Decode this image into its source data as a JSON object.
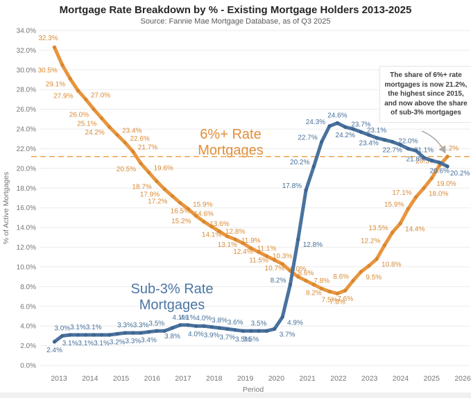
{
  "header": {
    "title": "Mortgage Rate Breakdown by % - Existing Mortgage Holders 2013-2025",
    "subtitle": "Source: Fannie Mae Mortgage Database, as of Q3 2025"
  },
  "chart_data": {
    "type": "line",
    "title": "Mortgage Rate Breakdown by % - Existing Mortgage Holders 2013-2025",
    "subtitle": "Source: Fannie Mae Mortgage Database, as of Q3 2025",
    "xlabel": "Period",
    "ylabel": "% of Active Mortgages",
    "ylim": [
      0,
      34
    ],
    "y_ticks": [
      0,
      2,
      4,
      6,
      8,
      10,
      12,
      14,
      16,
      18,
      20,
      22,
      24,
      26,
      28,
      30,
      32,
      34
    ],
    "y_tick_labels": [
      "0.0%",
      "2.0%",
      "4.0%",
      "6.0%",
      "8.0%",
      "10.0%",
      "12.0%",
      "14.0%",
      "16.0%",
      "18.0%",
      "20.0%",
      "22.0%",
      "24.0%",
      "26.0%",
      "28.0%",
      "30.0%",
      "32.0%",
      "34.0%"
    ],
    "x_ticks": [
      2013,
      2014,
      2015,
      2016,
      2017,
      2018,
      2019,
      2020,
      2021,
      2022,
      2023,
      2024,
      2025,
      2026
    ],
    "x_tick_labels": [
      "2013",
      "2014",
      "2015",
      "2016",
      "2017",
      "2018",
      "2019",
      "2020",
      "2021",
      "2022",
      "2023",
      "2024",
      "2025",
      "2026"
    ],
    "x_range_years": [
      2013.0,
      2025.5
    ],
    "grid": "horizontal",
    "reference_line": {
      "value": 21.2,
      "style": "dashed",
      "color": "#EBA24F"
    },
    "series": [
      {
        "name": "6%+ Rate Mortgages",
        "color": "#E8953E",
        "dot_color": "#D8862D",
        "label_color": "#D98A35",
        "inline_label": [
          "6%+ Rate",
          "Mortgages"
        ],
        "values": [
          32.3,
          30.5,
          29.1,
          27.9,
          27.0,
          26.0,
          25.1,
          24.2,
          23.4,
          22.6,
          21.7,
          20.5,
          19.6,
          18.7,
          17.9,
          17.2,
          16.5,
          15.9,
          15.2,
          14.6,
          14.1,
          13.6,
          13.1,
          12.8,
          12.4,
          11.9,
          11.5,
          11.1,
          10.7,
          10.3,
          9.6,
          9.0,
          8.6,
          8.2,
          7.8,
          7.5,
          7.3,
          7.6,
          8.6,
          9.5,
          10.1,
          10.8,
          12.2,
          13.5,
          14.4,
          15.9,
          17.1,
          18.0,
          19.0,
          20.3,
          21.2
        ],
        "labels": [
          "32.3%",
          "30.5%",
          "29.1%",
          "27.9%",
          "27.0%",
          "26.0%",
          "25.1%",
          "24.2%",
          "23.4%",
          "22.6%",
          "21.7%",
          "20.5%",
          "19.6%",
          "18.7%",
          "17.9%",
          "17.2%",
          "16.5%",
          "15.9%",
          "15.2%",
          "14.6%",
          "14.1%",
          "13.6%",
          "13.1%",
          "12.8%",
          "12.4%",
          "11.9%",
          "11.5%",
          "11.1%",
          "10.7%",
          "10.3%",
          "",
          "9.0%",
          "8.6%",
          "8.2%",
          "7.8%",
          "7.5%",
          "7.3%",
          "7.6%",
          "8.6%",
          "9.5%",
          "",
          "10.8%",
          "12.2%",
          "13.5%",
          "14.4%",
          "15.9%",
          "17.1%",
          "18.0%",
          "19.0%",
          "20.3%",
          "21.2%"
        ],
        "label_sides": [
          "a",
          "b",
          "b",
          "b",
          "a",
          "b",
          "b",
          "b",
          "a",
          "a",
          "a",
          "b",
          "a",
          "b",
          "b",
          "b",
          "b",
          "a",
          "b",
          "a",
          "b",
          "a",
          "b",
          "a",
          "b",
          "a",
          "b",
          "a",
          "b",
          "a",
          "",
          "a",
          "a",
          "b",
          "a",
          "b",
          "b",
          "b",
          "a",
          "b",
          "",
          "b",
          "a",
          "a",
          "b",
          "a",
          "a",
          "b",
          "b",
          "a",
          "a"
        ]
      },
      {
        "name": "Sub-3% Rate Mortgages",
        "color": "#4A729E",
        "dot_color": "#3D6590",
        "label_color": "#466F9B",
        "inline_label": [
          "Sub-3% Rate",
          "Mortgages"
        ],
        "values": [
          2.4,
          3.0,
          3.1,
          3.1,
          3.1,
          3.1,
          3.1,
          3.1,
          3.2,
          3.3,
          3.3,
          3.3,
          3.4,
          3.5,
          3.5,
          3.8,
          4.1,
          4.1,
          4.0,
          4.0,
          3.9,
          3.8,
          3.7,
          3.6,
          3.5,
          3.5,
          3.5,
          3.5,
          3.7,
          4.9,
          8.2,
          12.8,
          17.8,
          20.2,
          22.7,
          24.3,
          24.6,
          24.2,
          24.0,
          23.7,
          23.4,
          23.1,
          22.9,
          22.7,
          22.4,
          22.0,
          21.8,
          21.1,
          20.8,
          20.6,
          20.2
        ],
        "labels": [
          "2.4%",
          "3.0%",
          "3.1%",
          "3.1%",
          "3.1%",
          "3.1%",
          "3.1%",
          "",
          "3.2%",
          "3.3%",
          "3.3%",
          "3.3%",
          "3.4%",
          "3.5%",
          "",
          "3.8%",
          "4.1%",
          "4.1%",
          "4.0%",
          "4.0%",
          "3.9%",
          "3.8%",
          "3.7%",
          "3.6%",
          "3.5%",
          "3.5%",
          "3.5%",
          "",
          "3.7%",
          "4.9%",
          "8.2%",
          "12.8%",
          "17.8%",
          "20.2%",
          "22.7%",
          "24.3%",
          "24.6%",
          "24.2%",
          "",
          "23.7%",
          "23.4%",
          "23.1%",
          "",
          "22.7%",
          "",
          "22.0%",
          "21.8%",
          "21.1%",
          "",
          "20.6%",
          "20.2%"
        ],
        "label_sides": [
          "b",
          "a",
          "b",
          "a",
          "b",
          "a",
          "b",
          "",
          "b",
          "a",
          "b",
          "a",
          "b",
          "a",
          "",
          "b",
          "a",
          "a",
          "b",
          "a",
          "b",
          "a",
          "b",
          "a",
          "b",
          "b",
          "a",
          "",
          "b",
          "b",
          "a",
          "b",
          "a",
          "a",
          "a",
          "a",
          "a",
          "b",
          "",
          "a",
          "b",
          "a",
          "",
          "b",
          "",
          "a",
          "b",
          "a",
          "",
          "b",
          "b"
        ]
      }
    ],
    "annotation": {
      "lines": [
        "The share of 6%+ rate",
        "mortgages is now 21.2%,",
        "the highest since 2015,",
        "and now above the share",
        "of sub-3% mortgages"
      ]
    }
  }
}
